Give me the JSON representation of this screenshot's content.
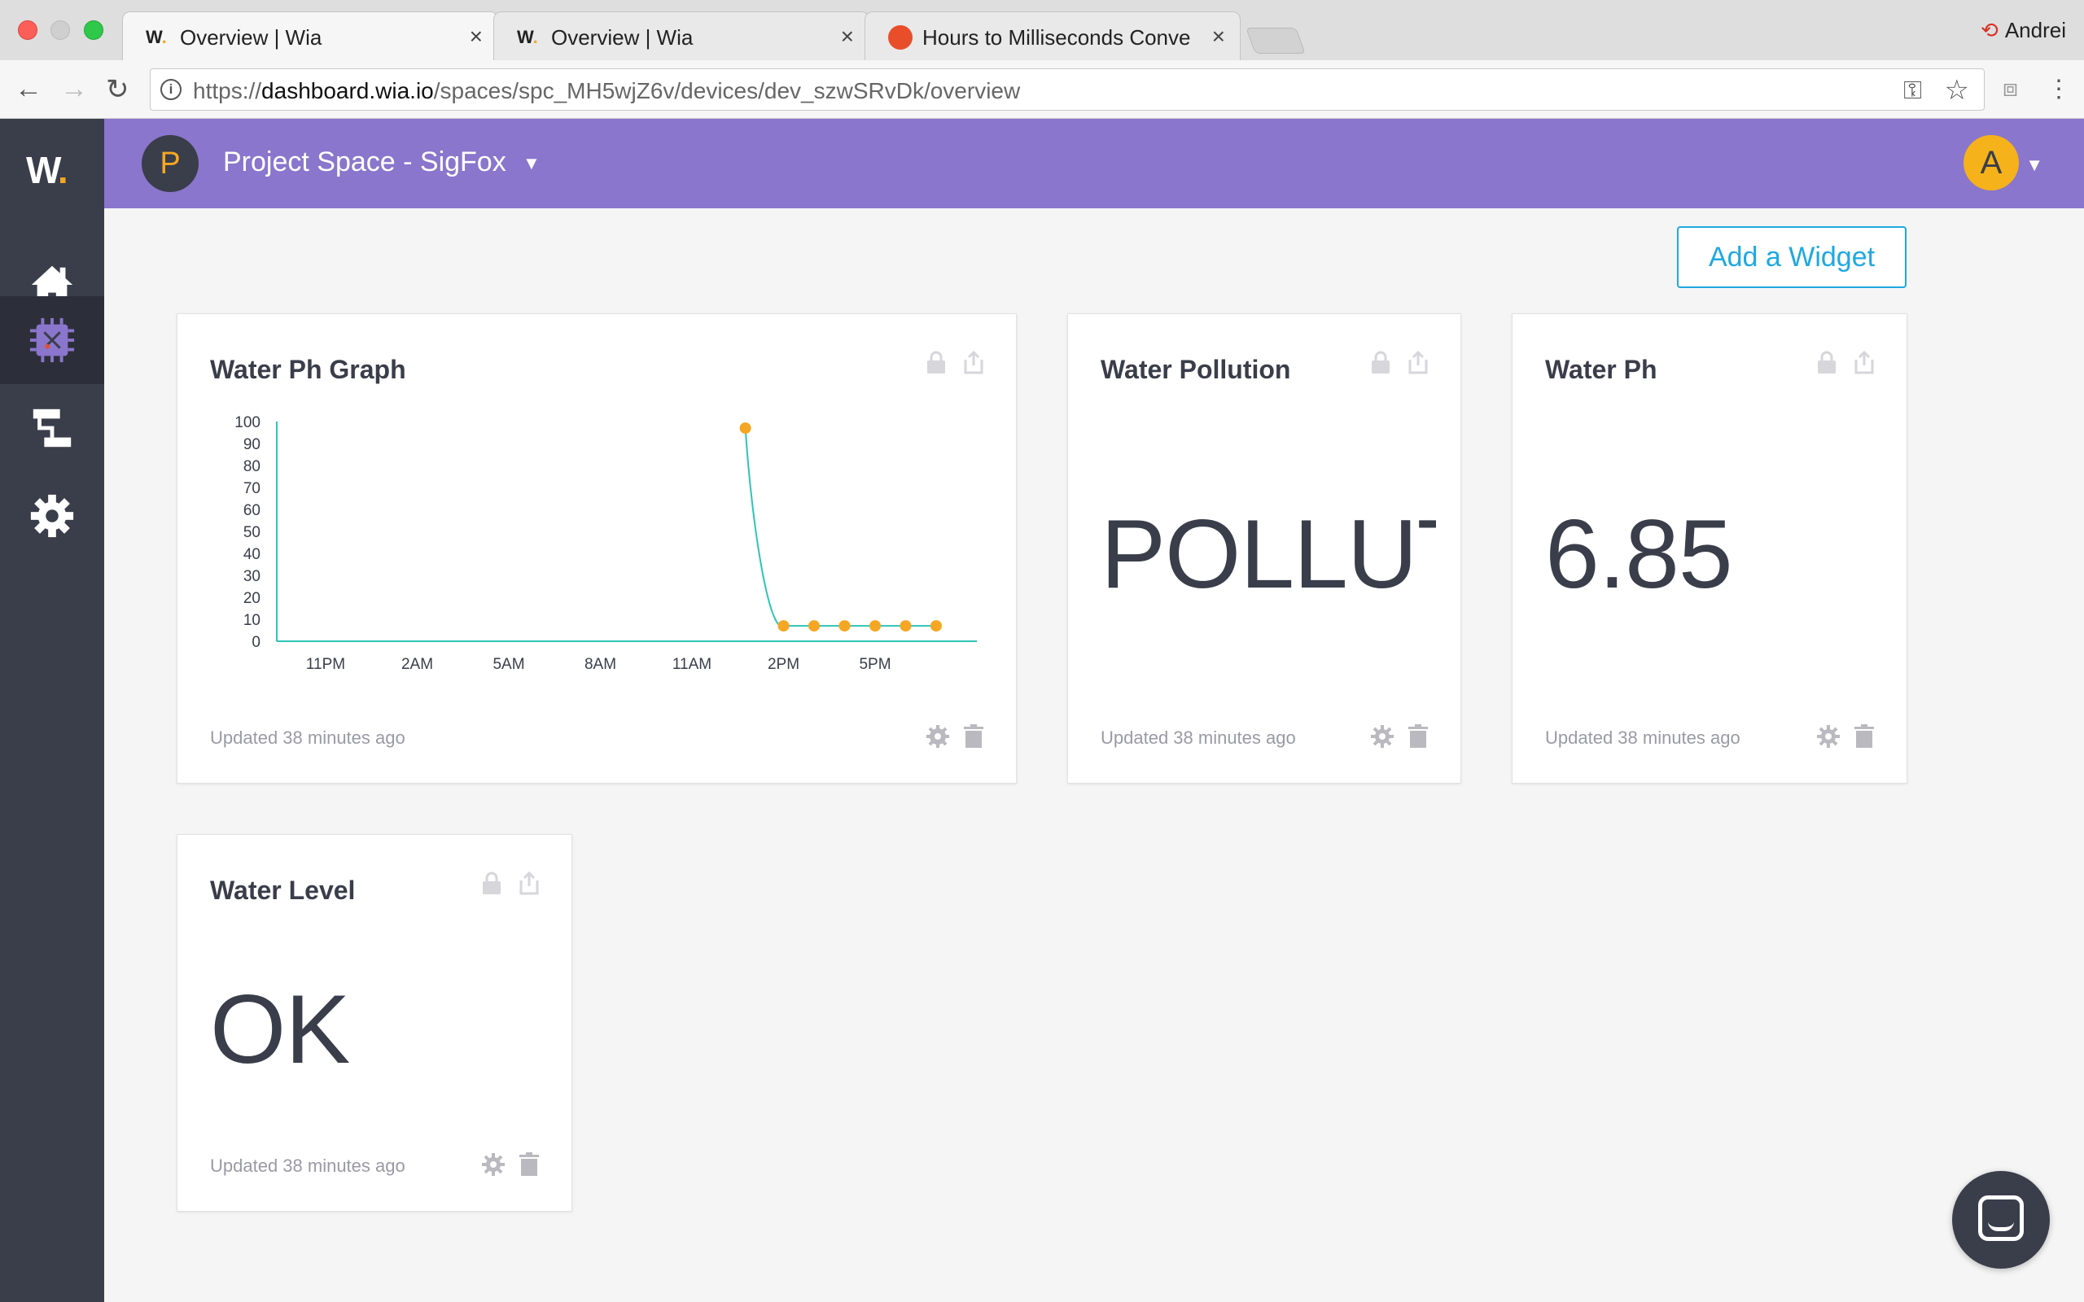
{
  "browser": {
    "tabs": [
      {
        "title": "Overview | Wia",
        "favicon": "wia-favicon",
        "active": true
      },
      {
        "title": "Overview | Wia",
        "favicon": "wia-favicon",
        "active": false
      },
      {
        "title": "Hours to Milliseconds Conversi",
        "favicon": "hourglass-favicon",
        "active": false
      }
    ],
    "profile_name": "Andrei",
    "url_scheme": "https://",
    "url_host": "dashboard.wia.io",
    "url_path": "/spaces/spc_MH5wjZ6v/devices/dev_szwSRvDk/overview"
  },
  "app": {
    "logo_text": "W",
    "logo_dot": ".",
    "space_initial": "P",
    "space_name": "Project Space - SigFox",
    "user_initial": "A",
    "accent_color": "#8a76cc",
    "sidebar_color": "#3a3d4a",
    "sidebar_items": [
      "home-icon",
      "device-chip-icon",
      "flows-icon",
      "settings-gear-icon"
    ],
    "add_widget_label": "Add a Widget"
  },
  "widgets": {
    "graph": {
      "title": "Water Ph Graph",
      "updated": "Updated 38 minutes ago"
    },
    "pollution": {
      "title": "Water Pollution",
      "value": "POLLUTED",
      "updated": "Updated 38 minutes ago"
    },
    "ph": {
      "title": "Water Ph",
      "value": "6.85",
      "updated": "Updated 38 minutes ago"
    },
    "level": {
      "title": "Water Level",
      "value": "OK",
      "updated": "Updated 38 minutes ago"
    }
  },
  "chart_data": {
    "type": "line",
    "title": "Water Ph Graph",
    "xlabel": "",
    "ylabel": "",
    "ylim": [
      0,
      100
    ],
    "yticks": [
      "100",
      "90",
      "80",
      "70",
      "60",
      "50",
      "40",
      "30",
      "20",
      "10",
      "0"
    ],
    "xticks": [
      "11PM",
      "2AM",
      "5AM",
      "8AM",
      "11AM",
      "2PM",
      "5PM"
    ],
    "x_hours_since_11PM": [
      13.75,
      15.0,
      16.0,
      17.0,
      18.0,
      19.0,
      20.0
    ],
    "values": [
      97,
      7,
      7,
      7,
      7,
      7,
      7
    ],
    "line_color": "#2ec4b6",
    "point_color": "#f5a623",
    "grid": false
  }
}
